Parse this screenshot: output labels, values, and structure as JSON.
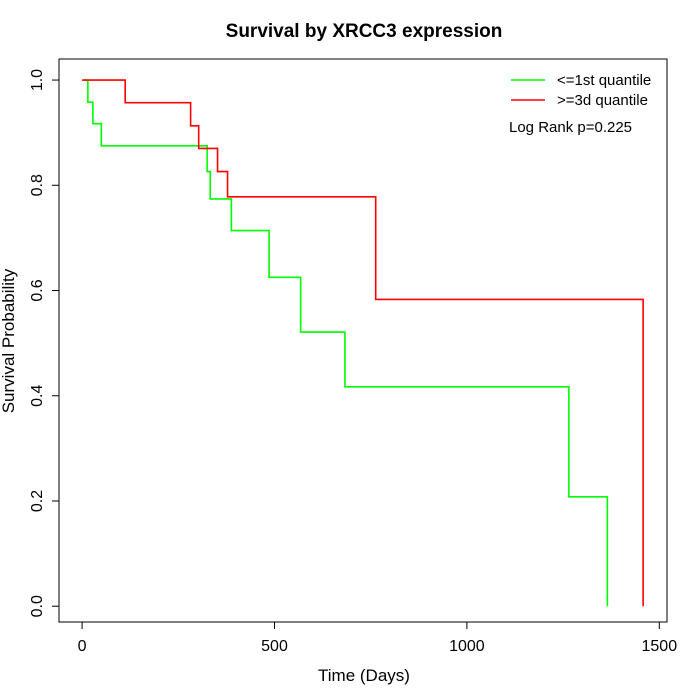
{
  "chart_data": {
    "type": "line",
    "title": "Survival by XRCC3 expression",
    "xlabel": "Time (Days)",
    "ylabel": "Survival Probability",
    "xlim": [
      -60,
      1520
    ],
    "ylim": [
      -0.03,
      1.04
    ],
    "x_ticks": [
      0,
      500,
      1000,
      1500
    ],
    "y_ticks": [
      0.0,
      0.2,
      0.4,
      0.6,
      0.8,
      1.0
    ],
    "x_tick_labels": [
      "0",
      "500",
      "1000",
      "1500"
    ],
    "y_tick_labels": [
      "0.0",
      "0.2",
      "0.4",
      "0.6",
      "0.8",
      "1.0"
    ],
    "grid": false,
    "legend_position": "top-right",
    "annotation": "Log Rank p=0.225",
    "series": [
      {
        "name": "<=1st quantile",
        "color": "#00ff00",
        "steps": [
          [
            5,
            1.0
          ],
          [
            15,
            0.958
          ],
          [
            28,
            0.917
          ],
          [
            50,
            0.875
          ],
          [
            312,
            0.875
          ],
          [
            325,
            0.826
          ],
          [
            333,
            0.774
          ],
          [
            388,
            0.714
          ],
          [
            486,
            0.625
          ],
          [
            568,
            0.521
          ],
          [
            683,
            0.417
          ],
          [
            1265,
            0.208
          ],
          [
            1365,
            0.0
          ]
        ]
      },
      {
        "name": ">=3d quantile",
        "color": "#ff0000",
        "steps": [
          [
            0,
            1.0
          ],
          [
            112,
            0.957
          ],
          [
            282,
            0.913
          ],
          [
            303,
            0.87
          ],
          [
            352,
            0.826
          ],
          [
            378,
            0.778
          ],
          [
            763,
            0.583
          ],
          [
            1458,
            0.0
          ]
        ]
      }
    ]
  }
}
